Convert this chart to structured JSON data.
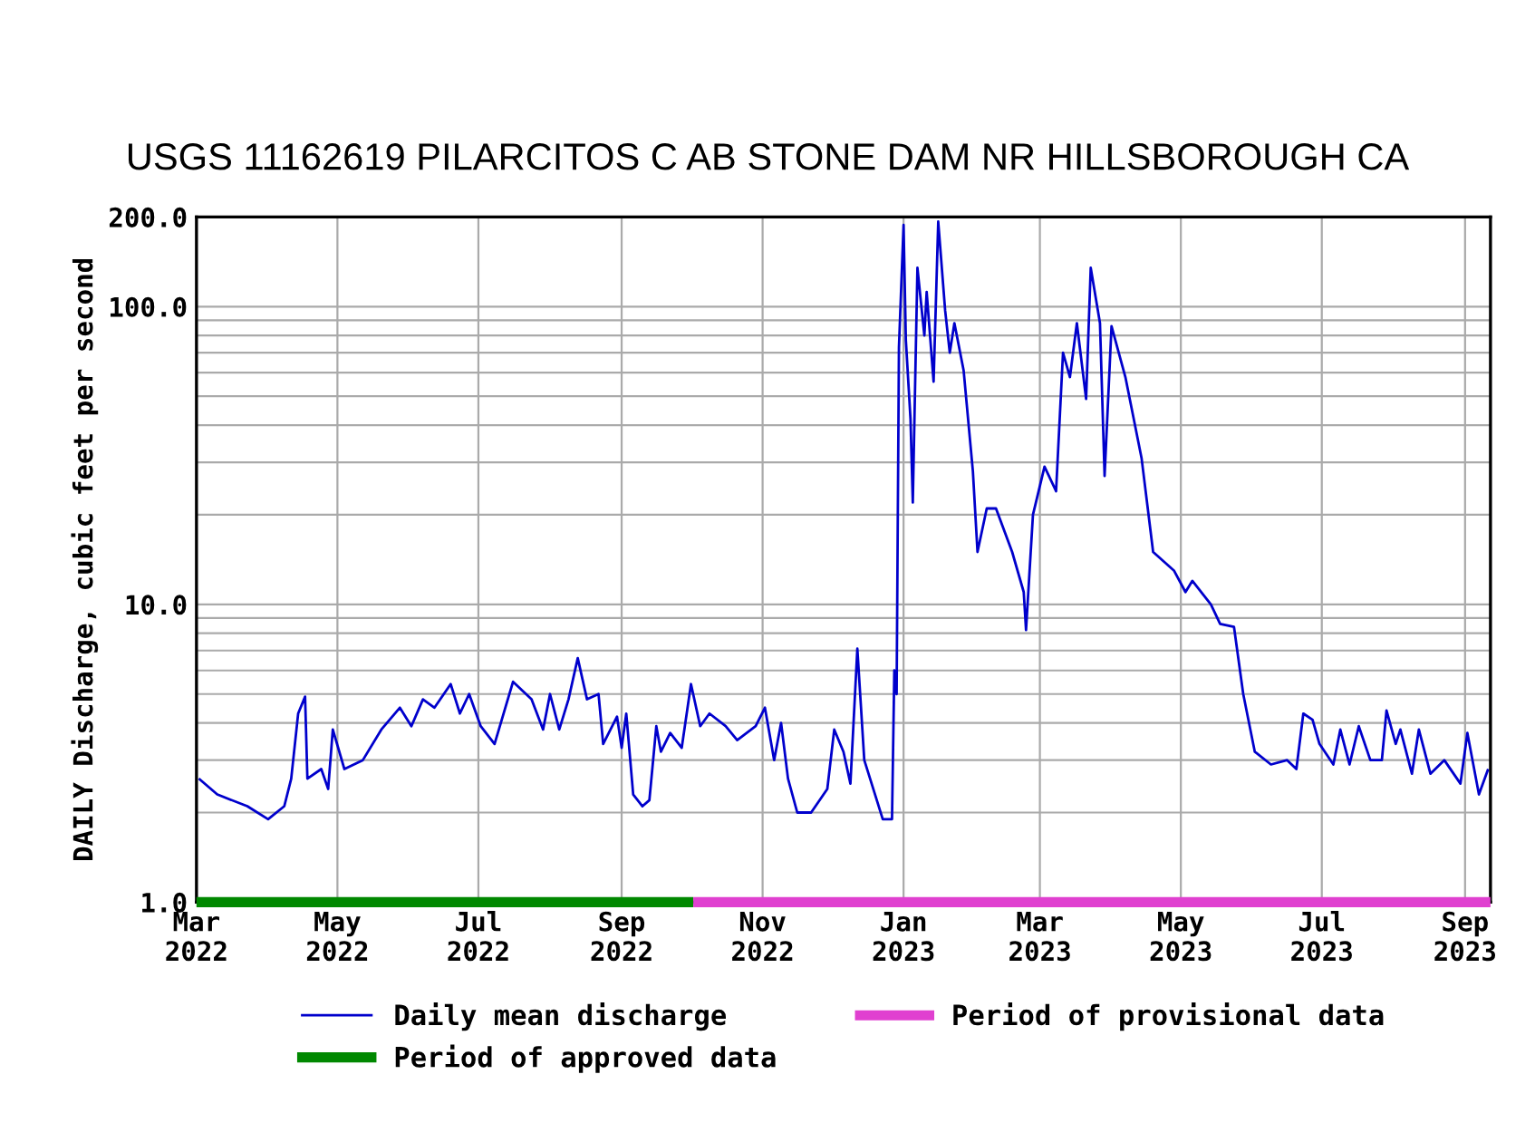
{
  "chart_data": {
    "type": "line",
    "title": "USGS 11162619 PILARCITOS C AB STONE DAM NR HILLSBOROUGH CA",
    "ylabel": "DAILY Discharge, cubic feet per second",
    "series": [
      {
        "name": "Daily mean discharge",
        "color": "#0000cc",
        "x": [
          "2022-03-02",
          "2022-03-10",
          "2022-03-23",
          "2022-04-01",
          "2022-04-08",
          "2022-04-11",
          "2022-04-14",
          "2022-04-17",
          "2022-04-18",
          "2022-04-24",
          "2022-04-27",
          "2022-04-29",
          "2022-05-04",
          "2022-05-12",
          "2022-05-20",
          "2022-05-28",
          "2022-06-02",
          "2022-06-07",
          "2022-06-12",
          "2022-06-19",
          "2022-06-23",
          "2022-06-27",
          "2022-07-02",
          "2022-07-08",
          "2022-07-16",
          "2022-07-24",
          "2022-07-29",
          "2022-08-01",
          "2022-08-05",
          "2022-08-09",
          "2022-08-13",
          "2022-08-17",
          "2022-08-22",
          "2022-08-24",
          "2022-08-30",
          "2022-09-01",
          "2022-09-03",
          "2022-09-06",
          "2022-09-10",
          "2022-09-13",
          "2022-09-16",
          "2022-09-18",
          "2022-09-22",
          "2022-09-27",
          "2022-10-01",
          "2022-10-05",
          "2022-10-09",
          "2022-10-16",
          "2022-10-21",
          "2022-10-29",
          "2022-11-02",
          "2022-11-06",
          "2022-11-09",
          "2022-11-12",
          "2022-11-16",
          "2022-11-22",
          "2022-11-29",
          "2022-12-02",
          "2022-12-06",
          "2022-12-09",
          "2022-12-12",
          "2022-12-15",
          "2022-12-23",
          "2022-12-27",
          "2022-12-28",
          "2022-12-29",
          "2022-12-30",
          "2023-01-01",
          "2023-01-02",
          "2023-01-04",
          "2023-01-05",
          "2023-01-07",
          "2023-01-10",
          "2023-01-11",
          "2023-01-14",
          "2023-01-16",
          "2023-01-19",
          "2023-01-21",
          "2023-01-23",
          "2023-01-27",
          "2023-01-31",
          "2023-02-02",
          "2023-02-06",
          "2023-02-10",
          "2023-02-17",
          "2023-02-22",
          "2023-02-23",
          "2023-02-26",
          "2023-03-03",
          "2023-03-08",
          "2023-03-11",
          "2023-03-14",
          "2023-03-17",
          "2023-03-21",
          "2023-03-23",
          "2023-03-27",
          "2023-03-29",
          "2023-04-01",
          "2023-04-07",
          "2023-04-14",
          "2023-04-19",
          "2023-04-28",
          "2023-05-03",
          "2023-05-06",
          "2023-05-14",
          "2023-05-18",
          "2023-05-24",
          "2023-05-28",
          "2023-06-02",
          "2023-06-09",
          "2023-06-16",
          "2023-06-20",
          "2023-06-23",
          "2023-06-27",
          "2023-06-30",
          "2023-07-06",
          "2023-07-09",
          "2023-07-13",
          "2023-07-17",
          "2023-07-22",
          "2023-07-27",
          "2023-07-29",
          "2023-08-02",
          "2023-08-04",
          "2023-08-09",
          "2023-08-12",
          "2023-08-17",
          "2023-08-23",
          "2023-08-30",
          "2023-09-02",
          "2023-09-07",
          "2023-09-11"
        ],
        "values": [
          2.6,
          2.3,
          2.1,
          1.9,
          2.1,
          2.6,
          4.3,
          4.9,
          2.6,
          2.8,
          2.4,
          3.8,
          2.8,
          3.0,
          3.8,
          4.5,
          3.9,
          4.8,
          4.5,
          5.4,
          4.3,
          5.0,
          3.9,
          3.4,
          5.5,
          4.8,
          3.8,
          5.0,
          3.8,
          4.8,
          6.6,
          4.8,
          5.0,
          3.4,
          4.2,
          3.3,
          4.3,
          2.3,
          2.1,
          2.2,
          3.9,
          3.2,
          3.7,
          3.3,
          5.4,
          3.9,
          4.3,
          3.9,
          3.5,
          3.9,
          4.5,
          3.0,
          4.0,
          2.6,
          2.0,
          2.0,
          2.4,
          3.8,
          3.2,
          2.5,
          7.1,
          3.0,
          1.9,
          1.9,
          6.0,
          5.0,
          73,
          188,
          77,
          42,
          22,
          135,
          80,
          112,
          56,
          193,
          97,
          70,
          88,
          61,
          28,
          15,
          21,
          21,
          15,
          11,
          8.2,
          20,
          29,
          24,
          70,
          58,
          88,
          49,
          135,
          88,
          27,
          86,
          58,
          31,
          15,
          13,
          11,
          12,
          10,
          8.6,
          8.4,
          5.0,
          3.2,
          2.9,
          3.0,
          2.8,
          4.3,
          4.1,
          3.4,
          2.9,
          3.8,
          2.9,
          3.9,
          3.0,
          3.0,
          4.4,
          3.4,
          3.8,
          2.7,
          3.8,
          2.7,
          3.0,
          2.5,
          3.7,
          2.3,
          2.8
        ]
      },
      {
        "name": "Period of approved data",
        "color": "#008800",
        "x": [
          "2022-03-01",
          "2022-10-02"
        ],
        "values": [
          1,
          1
        ]
      },
      {
        "name": "Period of provisional data",
        "color": "#e040d0",
        "x": [
          "2022-10-02",
          "2023-09-12"
        ],
        "values": [
          1,
          1
        ]
      }
    ],
    "xlim": [
      "2022-03-01",
      "2023-09-12"
    ],
    "xticks": [
      {
        "value": "2022-03-01",
        "label": "Mar\n2022"
      },
      {
        "value": "2022-05-01",
        "label": "May\n2022"
      },
      {
        "value": "2022-07-01",
        "label": "Jul\n2022"
      },
      {
        "value": "2022-09-01",
        "label": "Sep\n2022"
      },
      {
        "value": "2022-11-01",
        "label": "Nov\n2022"
      },
      {
        "value": "2023-01-01",
        "label": "Jan\n2023"
      },
      {
        "value": "2023-03-01",
        "label": "Mar\n2023"
      },
      {
        "value": "2023-05-01",
        "label": "May\n2023"
      },
      {
        "value": "2023-07-01",
        "label": "Jul\n2023"
      },
      {
        "value": "2023-09-01",
        "label": "Sep\n2023"
      }
    ],
    "log": true,
    "ylim": [
      1,
      200
    ],
    "yticks": [
      {
        "value": 1,
        "label": "1.0"
      },
      {
        "value": 2,
        "label": null
      },
      {
        "value": 3,
        "label": null
      },
      {
        "value": 4,
        "label": null
      },
      {
        "value": 5,
        "label": null
      },
      {
        "value": 6,
        "label": null
      },
      {
        "value": 7,
        "label": null
      },
      {
        "value": 8,
        "label": null
      },
      {
        "value": 9,
        "label": null
      },
      {
        "value": 10,
        "label": "10.0"
      },
      {
        "value": 20,
        "label": null
      },
      {
        "value": 30,
        "label": null
      },
      {
        "value": 40,
        "label": null
      },
      {
        "value": 50,
        "label": null
      },
      {
        "value": 60,
        "label": null
      },
      {
        "value": 70,
        "label": null
      },
      {
        "value": 80,
        "label": null
      },
      {
        "value": 90,
        "label": null
      },
      {
        "value": 100,
        "label": "100.0"
      },
      {
        "value": 200,
        "label": "200.0"
      }
    ],
    "grid": true,
    "legend": "bottom",
    "marker": "none",
    "line_style": "solid"
  }
}
